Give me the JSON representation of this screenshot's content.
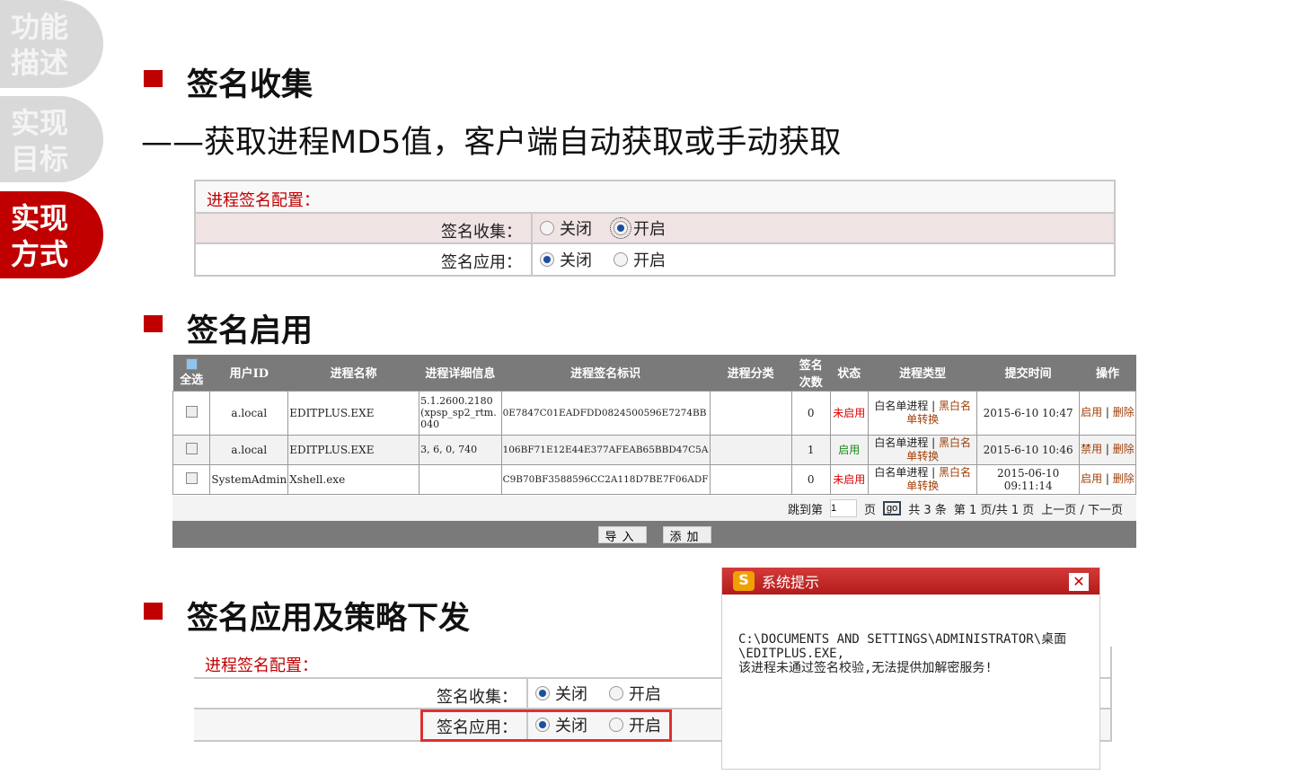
{
  "sidebar": {
    "tabs": [
      {
        "label": "功能描述"
      },
      {
        "label": "实现目标"
      },
      {
        "label": "实现方式"
      }
    ]
  },
  "sections": {
    "collect": {
      "title": "签名收集",
      "subtitle": "——获取进程MD5值，客户端自动获取或手动获取"
    },
    "enable": {
      "title": "签名启用"
    },
    "apply": {
      "title": "签名应用及策略下发"
    }
  },
  "config1": {
    "header": "进程签名配置：",
    "rows": [
      {
        "label": "签名收集：",
        "off": "关闭",
        "on": "开启",
        "selected": "开启"
      },
      {
        "label": "签名应用：",
        "off": "关闭",
        "on": "开启",
        "selected": "关闭"
      }
    ]
  },
  "config2": {
    "header": "进程签名配置：",
    "rows": [
      {
        "label": "签名收集：",
        "off": "关闭",
        "on": "开启",
        "selected": "关闭"
      },
      {
        "label": "签名应用：",
        "off": "关闭",
        "on": "开启",
        "selected": "关闭"
      }
    ]
  },
  "table": {
    "headers": [
      "全选",
      "用户ID",
      "进程名称",
      "进程详细信息",
      "进程签名标识",
      "进程分类",
      "签名次数",
      "状态",
      "进程类型",
      "提交时间",
      "操作"
    ],
    "rows": [
      {
        "user": "a.local",
        "name": "EDITPLUS.EXE",
        "detail": "5.1.2600.2180 (xpsp_sp2_rtm.040",
        "sig": "0E7847C01EADFDD0824500596E7274BB",
        "cat": "",
        "count": "0",
        "status": "未启用",
        "type_a": "白名单进程",
        "type_b": "黑白名单转换",
        "time": "2015-6-10 10:47",
        "op1": "启用",
        "op2": "删除"
      },
      {
        "user": "a.local",
        "name": "EDITPLUS.EXE",
        "detail": "3, 6, 0, 740",
        "sig": "106BF71E12E44E377AFEAB65BBD47C5A",
        "cat": "",
        "count": "1",
        "status": "启用",
        "type_a": "白名单进程",
        "type_b": "黑白名单转换",
        "time": "2015-6-10 10:46",
        "op1": "禁用",
        "op2": "删除"
      },
      {
        "user": "SystemAdmin",
        "name": "Xshell.exe",
        "detail": "",
        "sig": "C9B70BF3588596CC2A118D7BE7F06ADF",
        "cat": "",
        "count": "0",
        "status": "未启用",
        "type_a": "白名单进程",
        "type_b": "黑白名单转换",
        "time": "2015-06-10 09:11:14",
        "op1": "启用",
        "op2": "删除"
      }
    ],
    "pager": {
      "jump": "跳到第",
      "page_value": "1",
      "page": "页",
      "go": "go",
      "total": "共 3 条",
      "current": "第 1 页/共 1 页",
      "prev": "上一页",
      "sep": "/",
      "next": "下一页"
    },
    "buttons": {
      "import": "导入",
      "add": "添加"
    }
  },
  "dialog": {
    "title": "系统提示",
    "icon": "S",
    "line1": "C:\\DOCUMENTS AND SETTINGS\\ADMINISTRATOR\\桌面",
    "line2": "\\EDITPLUS.EXE,",
    "line3": "该进程未通过签名校验,无法提供加解密服务!"
  },
  "colors": {
    "accent": "#c00000",
    "header_gray": "#7a7a7a"
  }
}
